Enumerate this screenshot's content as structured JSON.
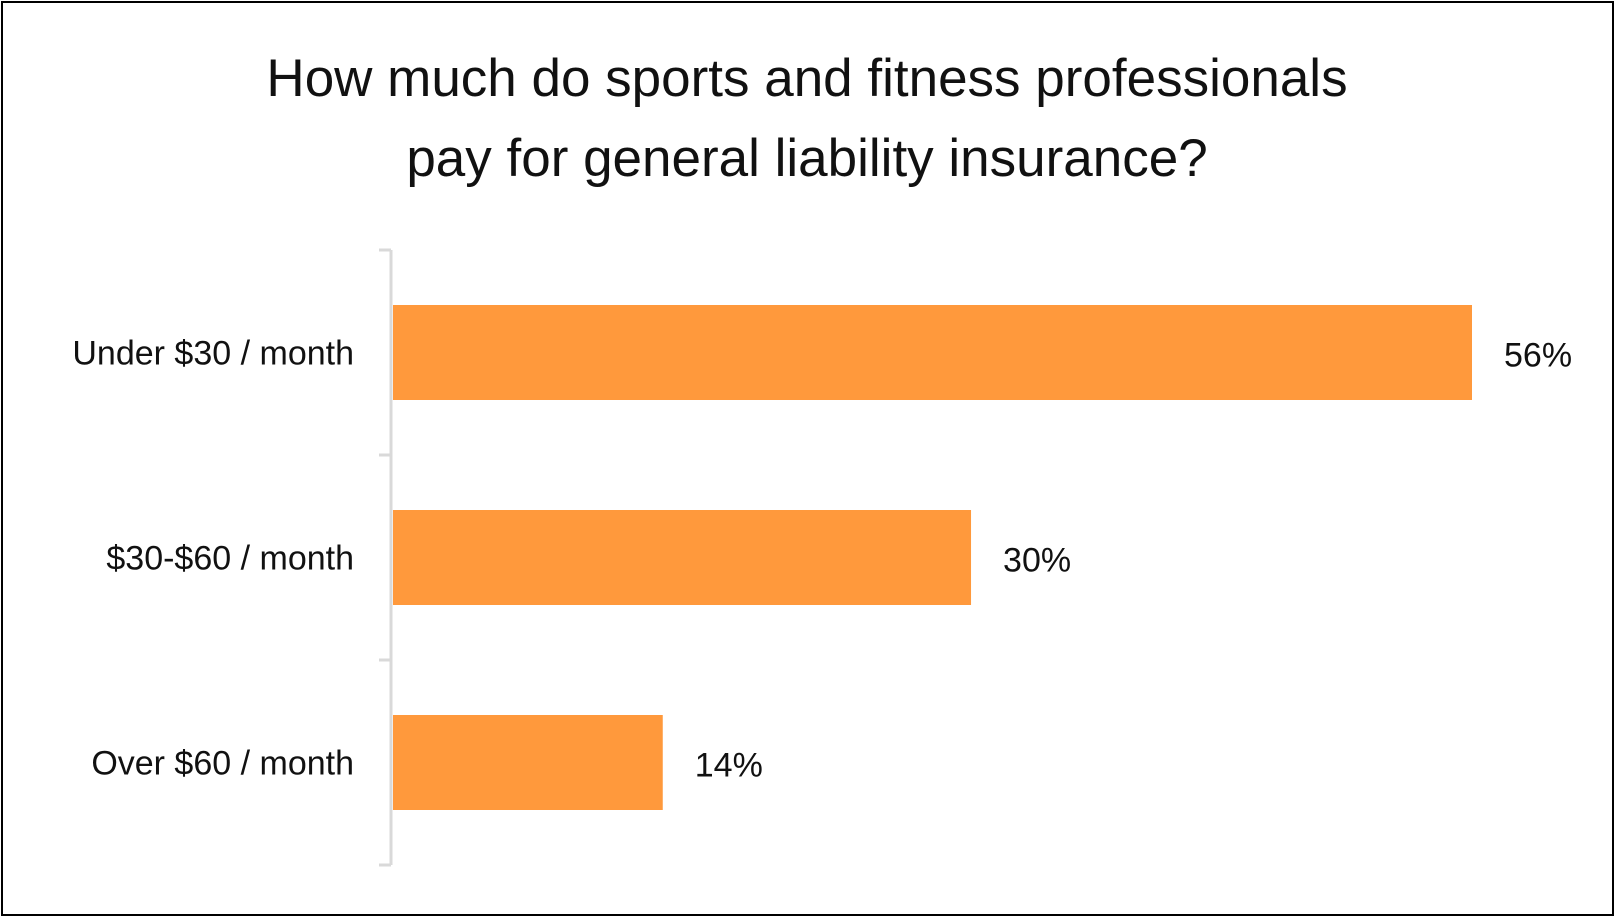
{
  "chart_data": {
    "type": "bar",
    "orientation": "horizontal",
    "title_lines": [
      "How much do sports and fitness professionals",
      "pay for general liability insurance?"
    ],
    "categories": [
      "Under $30 / month",
      "$30-$60 / month",
      "Over $60 / month"
    ],
    "values": [
      56,
      30,
      14
    ],
    "value_labels": [
      "56%",
      "30%",
      "14%"
    ],
    "xlabel": "",
    "ylabel": "",
    "xlim": [
      0,
      56
    ],
    "grid": false,
    "legend": "none",
    "colors": {
      "bar": "#FF993C",
      "axis": "#D9D9D9",
      "text": "#111111"
    }
  }
}
